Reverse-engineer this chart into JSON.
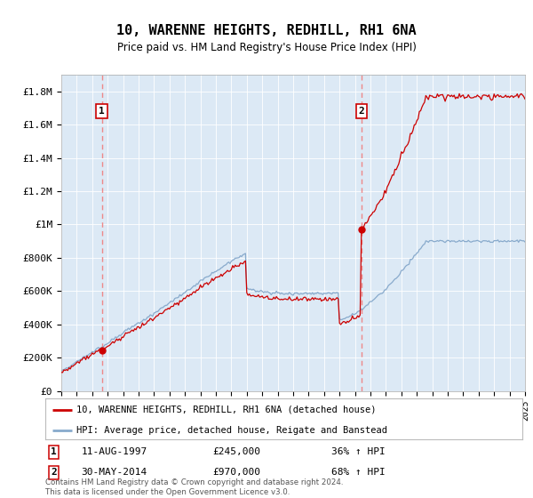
{
  "title": "10, WARENNE HEIGHTS, REDHILL, RH1 6NA",
  "subtitle": "Price paid vs. HM Land Registry's House Price Index (HPI)",
  "bg_color": "#dce9f5",
  "x_start_year": 1995,
  "x_end_year": 2025,
  "ylim": [
    0,
    1900000
  ],
  "yticks": [
    0,
    200000,
    400000,
    600000,
    800000,
    1000000,
    1200000,
    1400000,
    1600000,
    1800000
  ],
  "ytick_labels": [
    "£0",
    "£200K",
    "£400K",
    "£600K",
    "£800K",
    "£1M",
    "£1.2M",
    "£1.4M",
    "£1.6M",
    "£1.8M"
  ],
  "sale1_year": 1997.617,
  "sale1_price": 245000,
  "sale2_year": 2014.413,
  "sale2_price": 970000,
  "red_line_color": "#cc0000",
  "blue_line_color": "#88aacc",
  "dashed_line_color": "#ee8888",
  "legend_label_red": "10, WARENNE HEIGHTS, REDHILL, RH1 6NA (detached house)",
  "legend_label_blue": "HPI: Average price, detached house, Reigate and Banstead",
  "annotation1_date": "11-AUG-1997",
  "annotation1_price": "£245,000",
  "annotation1_hpi": "36% ↑ HPI",
  "annotation2_date": "30-MAY-2014",
  "annotation2_price": "£970,000",
  "annotation2_hpi": "68% ↑ HPI",
  "footer": "Contains HM Land Registry data © Crown copyright and database right 2024.\nThis data is licensed under the Open Government Licence v3.0."
}
